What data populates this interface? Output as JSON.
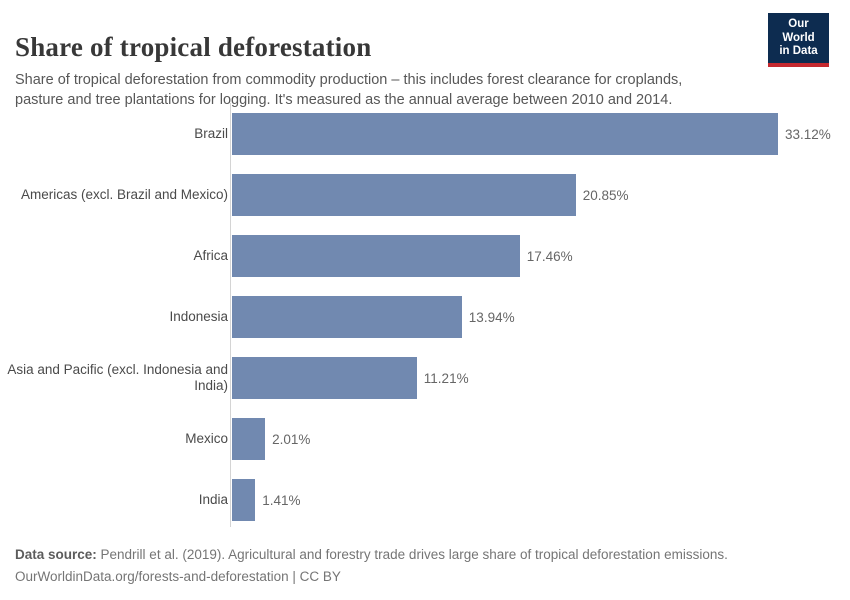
{
  "header": {
    "title": "Share of tropical deforestation",
    "subtitle": "Share of tropical deforestation from commodity production – this includes forest clearance for croplands, pasture and tree plantations for logging. It's measured as the annual average between 2010 and 2014."
  },
  "logo": {
    "line1": "Our World",
    "line2": "in Data",
    "bg_color": "#0d2c50",
    "accent_color": "#c5292f"
  },
  "chart_data": {
    "type": "bar",
    "orientation": "horizontal",
    "title": "Share of tropical deforestation",
    "xlabel": "",
    "ylabel": "",
    "unit": "%",
    "xlim": [
      0,
      33.12
    ],
    "grid": false,
    "legend": false,
    "bar_color": "#7189b0",
    "axis_color": "#d4d4d4",
    "categories": [
      "Brazil",
      "Americas (excl. Brazil and Mexico)",
      "Africa",
      "Indonesia",
      "Asia and Pacific (excl. Indonesia and India)",
      "Mexico",
      "India"
    ],
    "category_labels": [
      "Brazil",
      "Americas (excl. Brazil and Mexico)",
      "Africa",
      "Indonesia",
      "Asia and Pacific (excl. Indonesia and\nIndia)",
      "Mexico",
      "India"
    ],
    "values": [
      33.12,
      20.85,
      17.46,
      13.94,
      11.21,
      2.01,
      1.41
    ],
    "value_labels": [
      "33.12%",
      "20.85%",
      "17.46%",
      "13.94%",
      "11.21%",
      "2.01%",
      "1.41%"
    ]
  },
  "footer": {
    "source_bold": "Data source:",
    "source_rest": " Pendrill et al. (2019). Agricultural and forestry trade drives large share of tropical deforestation emissions.",
    "citation": "OurWorldinData.org/forests-and-deforestation | CC BY"
  }
}
